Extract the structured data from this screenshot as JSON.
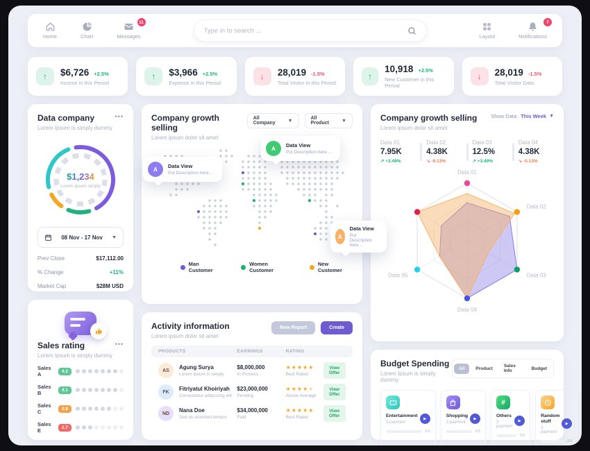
{
  "nav": {
    "items": [
      {
        "label": "Home"
      },
      {
        "label": "Chart"
      },
      {
        "label": "Messages",
        "badge": "11"
      }
    ],
    "search_placeholder": "Type in to search ...",
    "right_items": [
      {
        "label": "Layout"
      },
      {
        "label": "Notifications",
        "badge": "7"
      }
    ]
  },
  "kpis": [
    {
      "value": "$6,726",
      "delta": "+2.5%",
      "label": "Income in this Period",
      "trend": "up"
    },
    {
      "value": "$3,966",
      "delta": "+2.5%",
      "label": "Expense in this Period",
      "trend": "up"
    },
    {
      "value": "28,019",
      "delta": "-1.5%",
      "label": "Total Visitor in this Period",
      "trend": "down"
    },
    {
      "value": "10,918",
      "delta": "+2.5%",
      "label": "New Customer in this Period",
      "trend": "up"
    },
    {
      "value": "28,019",
      "delta": "-1.5%",
      "label": "Total Visitor Data",
      "trend": "down"
    }
  ],
  "data_company": {
    "title": "Data company",
    "subtitle": "Lorem Ipsum is simply dummy",
    "menu_icon": "•••",
    "center_value": "$1,234",
    "center_label": "Lorem ipsum simply",
    "date_range": "08 Nov - 17 Nov",
    "stats": [
      {
        "label": "Prev Close",
        "value": "$17,112.00"
      },
      {
        "label": "% Change",
        "value": "+11%"
      },
      {
        "label": "Market Cap",
        "value": "$28M USD"
      }
    ]
  },
  "sales_rating": {
    "title": "Sales rating",
    "subtitle": "Lorem Ipsum is simply dummy",
    "menu_icon": "•••",
    "dots_total": 8,
    "rows": [
      {
        "name": "Sales A",
        "score": "4.2",
        "tone": "green",
        "dots": 7
      },
      {
        "name": "Sales B",
        "score": "4.1",
        "tone": "green",
        "dots": 7
      },
      {
        "name": "Sales C",
        "score": "2.8",
        "tone": "orange",
        "dots": 6
      },
      {
        "name": "Sales E",
        "score": "1.7",
        "tone": "red",
        "dots": 3
      }
    ]
  },
  "growth_map": {
    "title": "Company growth selling",
    "subtitle": "Lorem ipsum dolor sit amet",
    "filters": [
      "All Company",
      "All Product"
    ],
    "tooltips": [
      {
        "avatar": "A",
        "title": "Data View",
        "desc": "Put Description here ...",
        "color": "#8f7cf0"
      },
      {
        "avatar": "A",
        "title": "Data View",
        "desc": "Put Description here ...",
        "color": "#3ecb74"
      },
      {
        "avatar": "A",
        "title": "Data View",
        "desc": "Put Description here ...",
        "color": "#f7b267"
      }
    ],
    "legend": [
      {
        "label": "Man Customer",
        "color": "#6e5bd8"
      },
      {
        "label": "Women Customer",
        "color": "#18b26b"
      },
      {
        "label": "New Customer",
        "color": "#f5a623"
      }
    ]
  },
  "activity": {
    "title": "Activity information",
    "subtitle": "Lorem ipsum dolor sit amet",
    "buttons": {
      "secondary": "New Report",
      "primary": "Create"
    },
    "columns": [
      "PRODUCTS",
      "EARNINGS",
      "RATING"
    ],
    "rows": [
      {
        "initials": "AS",
        "name": "Agung Surya",
        "desc": "Lorem Ipsum is simply",
        "earning": "$8,000,000",
        "status": "In Process",
        "stars": 5,
        "rating_label": "Best Rated",
        "action": "View Offer"
      },
      {
        "initials": "FK",
        "name": "Fitriyatul Khoiriyah",
        "desc": "Consectetur adipiscing elit",
        "earning": "$23,000,000",
        "status": "Pending",
        "stars": 4.5,
        "rating_label": "Above Average",
        "action": "View Offer"
      },
      {
        "initials": "ND",
        "name": "Nana Doe",
        "desc": "Sed do eiusmod tempor",
        "earning": "$34,000,000",
        "status": "Paid",
        "stars": 5,
        "rating_label": "Best Rated",
        "action": "View Offer"
      }
    ]
  },
  "growth_radar": {
    "title": "Company growth selling",
    "subtitle": "Lorem ipsum dolor sit amet",
    "show_data_label": "Show Data:",
    "show_data_value": "This Week",
    "stats": [
      {
        "label": "Data 01",
        "value": "7.95K",
        "delta": "+3.49%",
        "trend": "up"
      },
      {
        "label": "Data 02",
        "value": "4.38K",
        "delta": "-0.13%",
        "trend": "down"
      },
      {
        "label": "Data 03",
        "value": "12.5%",
        "delta": "+3.49%",
        "trend": "up"
      },
      {
        "label": "Data 04",
        "value": "4.38K",
        "delta": "-0.13%",
        "trend": "down"
      }
    ]
  },
  "budget": {
    "title": "Budget Spending",
    "subtitle": "Lorem Ipsum is simply dummy",
    "tabs": [
      "All",
      "Product",
      "Sales Info",
      "Budget"
    ],
    "active_tab": "All",
    "items": [
      {
        "name": "Entertainment",
        "sub": "3 payment",
        "fraction": "1/5",
        "progress": 25,
        "color": "#2fd3c2",
        "icon": "ticket-icon"
      },
      {
        "name": "Shopping",
        "sub": "3 payment",
        "fraction": "2/5",
        "progress": 25,
        "color": "#7c5cdb",
        "icon": "bag-icon"
      },
      {
        "name": "Others",
        "sub": "3 payment",
        "fraction": "2/3",
        "progress": 55,
        "color": "#18b26b",
        "icon": "hash-icon"
      },
      {
        "name": "Random stuff",
        "sub": "3 payment",
        "fraction": "3/3",
        "progress": 38,
        "color": "#f5a623",
        "icon": "clock-icon"
      }
    ]
  },
  "chart_data": [
    {
      "type": "pie",
      "title": "Data company donut",
      "center_text": "$1,234",
      "center_label": "Lorem ipsum simply",
      "segments": [
        {
          "name": "purple",
          "color": "#7b5ce0",
          "value": 47
        },
        {
          "name": "green",
          "color": "#22b07d",
          "value": 11
        },
        {
          "name": "orange",
          "color": "#f5a623",
          "value": 8
        },
        {
          "name": "teal",
          "color": "#2fc7c9",
          "value": 24
        }
      ]
    },
    {
      "type": "radar",
      "axes": [
        "Data 01",
        "Data 02",
        "Data 03",
        "Data 04",
        "Data 05",
        ""
      ],
      "max": 100,
      "series": [
        {
          "name": "purple",
          "color": "#8a7ce8",
          "fill": "rgba(138,124,232,0.42)",
          "values": [
            66,
            85,
            100,
            100,
            55,
            52
          ]
        },
        {
          "name": "orange",
          "color": "#f7b267",
          "fill": "rgba(247,178,103,0.45)",
          "values": [
            82,
            95,
            42,
            100,
            55,
            100
          ]
        }
      ],
      "vertex_colors": [
        "#ec4899",
        "#f59e0b",
        "#0ba06a",
        "#4655e0",
        "#22d3ee",
        "#e11d48"
      ]
    }
  ]
}
